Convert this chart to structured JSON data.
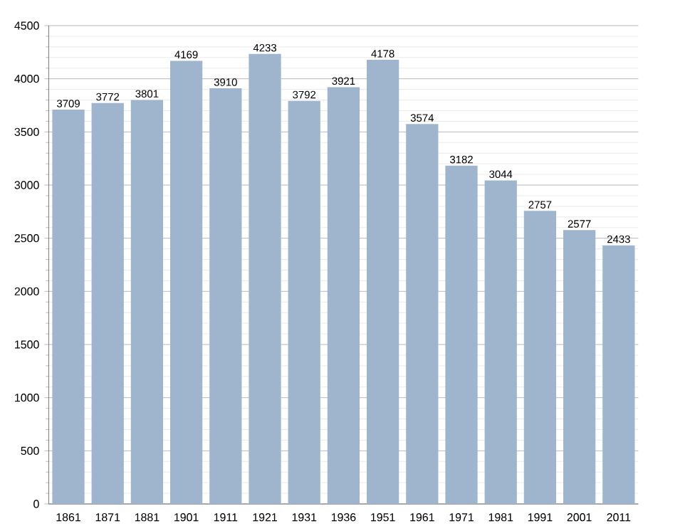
{
  "chart_data": {
    "type": "bar",
    "categories": [
      "1861",
      "1871",
      "1881",
      "1901",
      "1911",
      "1921",
      "1931",
      "1936",
      "1951",
      "1961",
      "1971",
      "1981",
      "1991",
      "2001",
      "2011"
    ],
    "values": [
      3709,
      3772,
      3801,
      4169,
      3910,
      4233,
      3792,
      3921,
      4178,
      3574,
      3182,
      3044,
      2757,
      2577,
      2433
    ],
    "color": "#9fb5cd",
    "ylim": [
      0,
      4500
    ],
    "yticks": [
      0,
      500,
      1000,
      1500,
      2000,
      2500,
      3000,
      3500,
      4000,
      4500
    ],
    "grid": "y",
    "data_labels": true
  }
}
